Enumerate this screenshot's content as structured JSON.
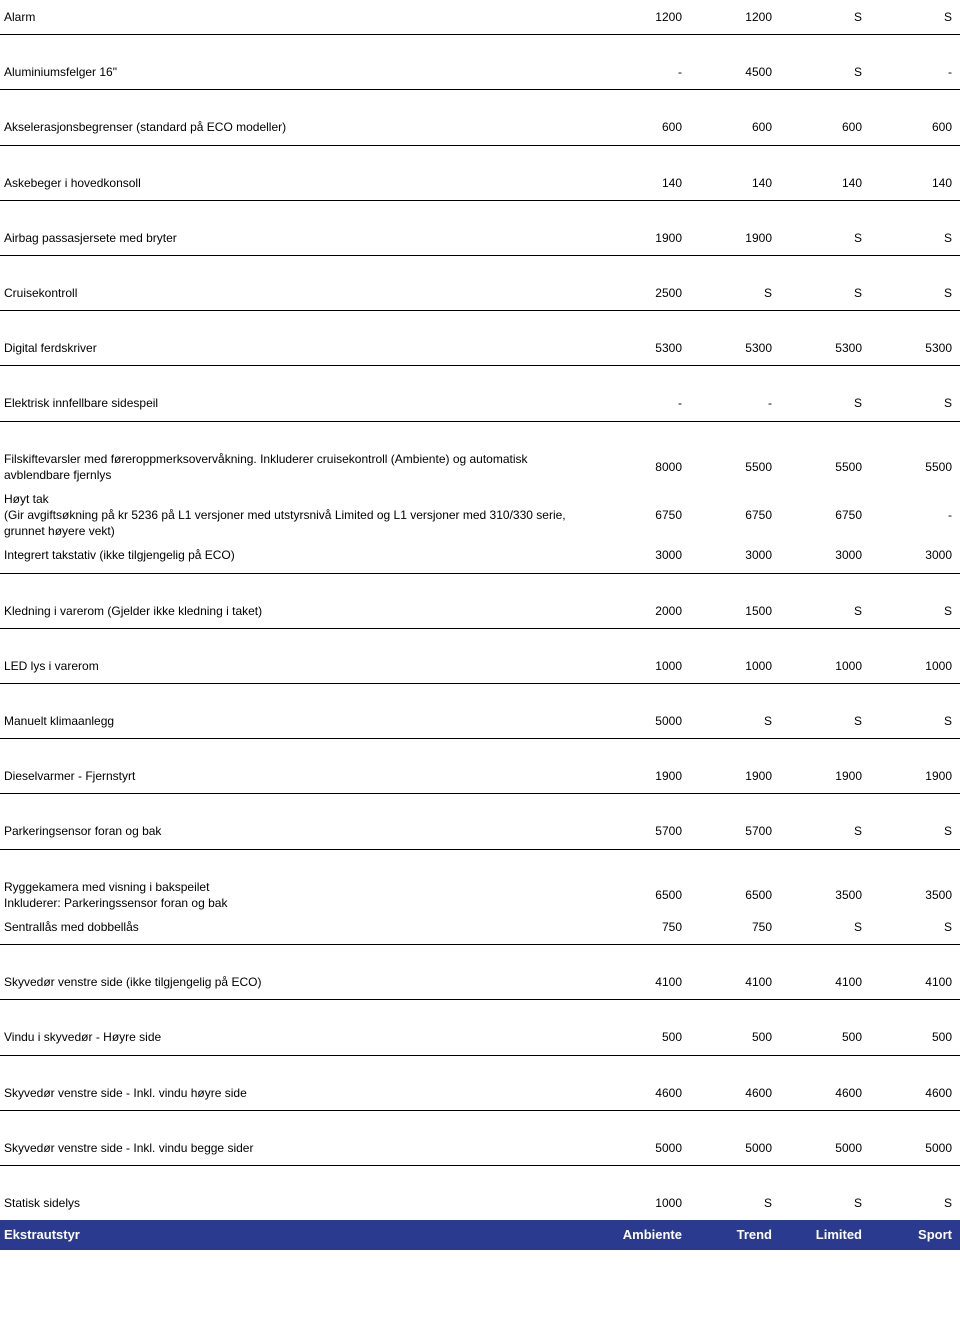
{
  "colors": {
    "text": "#000000",
    "background": "#ffffff",
    "footer_bg": "#2a3b8f",
    "footer_text": "#ffffff",
    "rule": "#000000"
  },
  "typography": {
    "font_family": "Arial, Helvetica, sans-serif",
    "body_fontsize": 12,
    "footer_fontsize": 13
  },
  "rows": [
    {
      "label": "Alarm",
      "c": [
        "1200",
        "1200",
        "S",
        "S"
      ]
    },
    {
      "label": "Aluminiumsfelger 16\"",
      "c": [
        "-",
        "4500",
        "S",
        "-"
      ]
    },
    {
      "label": "Akselerasjonsbegrenser (standard på ECO modeller)",
      "c": [
        "600",
        "600",
        "600",
        "600"
      ]
    },
    {
      "label": "Askebeger i hovedkonsoll",
      "c": [
        "140",
        "140",
        "140",
        "140"
      ]
    },
    {
      "label": "Airbag passasjersete med bryter",
      "c": [
        "1900",
        "1900",
        "S",
        "S"
      ]
    },
    {
      "label": "Cruisekontroll",
      "c": [
        "2500",
        "S",
        "S",
        "S"
      ]
    },
    {
      "label": "Digital ferdskriver",
      "c": [
        "5300",
        "5300",
        "5300",
        "5300"
      ]
    },
    {
      "label": "Elektrisk innfellbare sidespeil",
      "c": [
        "-",
        "-",
        "S",
        "S"
      ]
    }
  ],
  "group1": [
    {
      "label": "Filskiftevarsler med føreroppmerksovervåkning. Inkluderer cruisekontroll (Ambiente) og  automatisk avblendbare fjernlys",
      "c": [
        "8000",
        "5500",
        "5500",
        "5500"
      ]
    },
    {
      "label": "Høyt tak",
      "sub": "(Gir avgiftsøkning på kr 5236 på L1 versjoner med utstyrsnivå Limited og L1 versjoner med 310/330 serie, grunnet høyere vekt)",
      "c": [
        "6750",
        "6750",
        "6750",
        "-"
      ]
    },
    {
      "label": "Integrert takstativ (ikke tilgjengelig på ECO)",
      "c": [
        "3000",
        "3000",
        "3000",
        "3000"
      ]
    }
  ],
  "rows2": [
    {
      "label": "Kledning i varerom (Gjelder ikke kledning i taket)",
      "c": [
        "2000",
        "1500",
        "S",
        "S"
      ]
    },
    {
      "label": "LED lys i varerom",
      "c": [
        "1000",
        "1000",
        "1000",
        "1000"
      ]
    },
    {
      "label": "Manuelt klimaanlegg",
      "c": [
        "5000",
        "S",
        "S",
        "S"
      ]
    },
    {
      "label": "Dieselvarmer - Fjernstyrt",
      "c": [
        "1900",
        "1900",
        "1900",
        "1900"
      ]
    },
    {
      "label": "Parkeringsensor foran og bak",
      "c": [
        "5700",
        "5700",
        "S",
        "S"
      ]
    }
  ],
  "group2": [
    {
      "label": "Ryggekamera med visning i bakspeilet",
      "sub": "Inkluderer: Parkeringssensor foran og bak",
      "c": [
        "6500",
        "6500",
        "3500",
        "3500"
      ]
    },
    {
      "label": "Sentrallås med dobbellås",
      "c": [
        "750",
        "750",
        "S",
        "S"
      ]
    }
  ],
  "rows3": [
    {
      "label": "Skyvedør venstre side (ikke tilgjengelig på ECO)",
      "c": [
        "4100",
        "4100",
        "4100",
        "4100"
      ]
    },
    {
      "label": "Vindu i skyvedør - Høyre side",
      "c": [
        "500",
        "500",
        "500",
        "500"
      ]
    },
    {
      "label": "Skyvedør venstre side  - Inkl. vindu høyre side",
      "c": [
        "4600",
        "4600",
        "4600",
        "4600"
      ]
    },
    {
      "label": "Skyvedør venstre side - Inkl. vindu begge sider",
      "c": [
        "5000",
        "5000",
        "5000",
        "5000"
      ]
    },
    {
      "label": "Statisk sidelys",
      "c": [
        "1000",
        "S",
        "S",
        "S"
      ]
    }
  ],
  "footer": {
    "label": "Ekstrautstyr",
    "cols": [
      "Ambiente",
      "Trend",
      "Limited",
      "Sport"
    ]
  }
}
